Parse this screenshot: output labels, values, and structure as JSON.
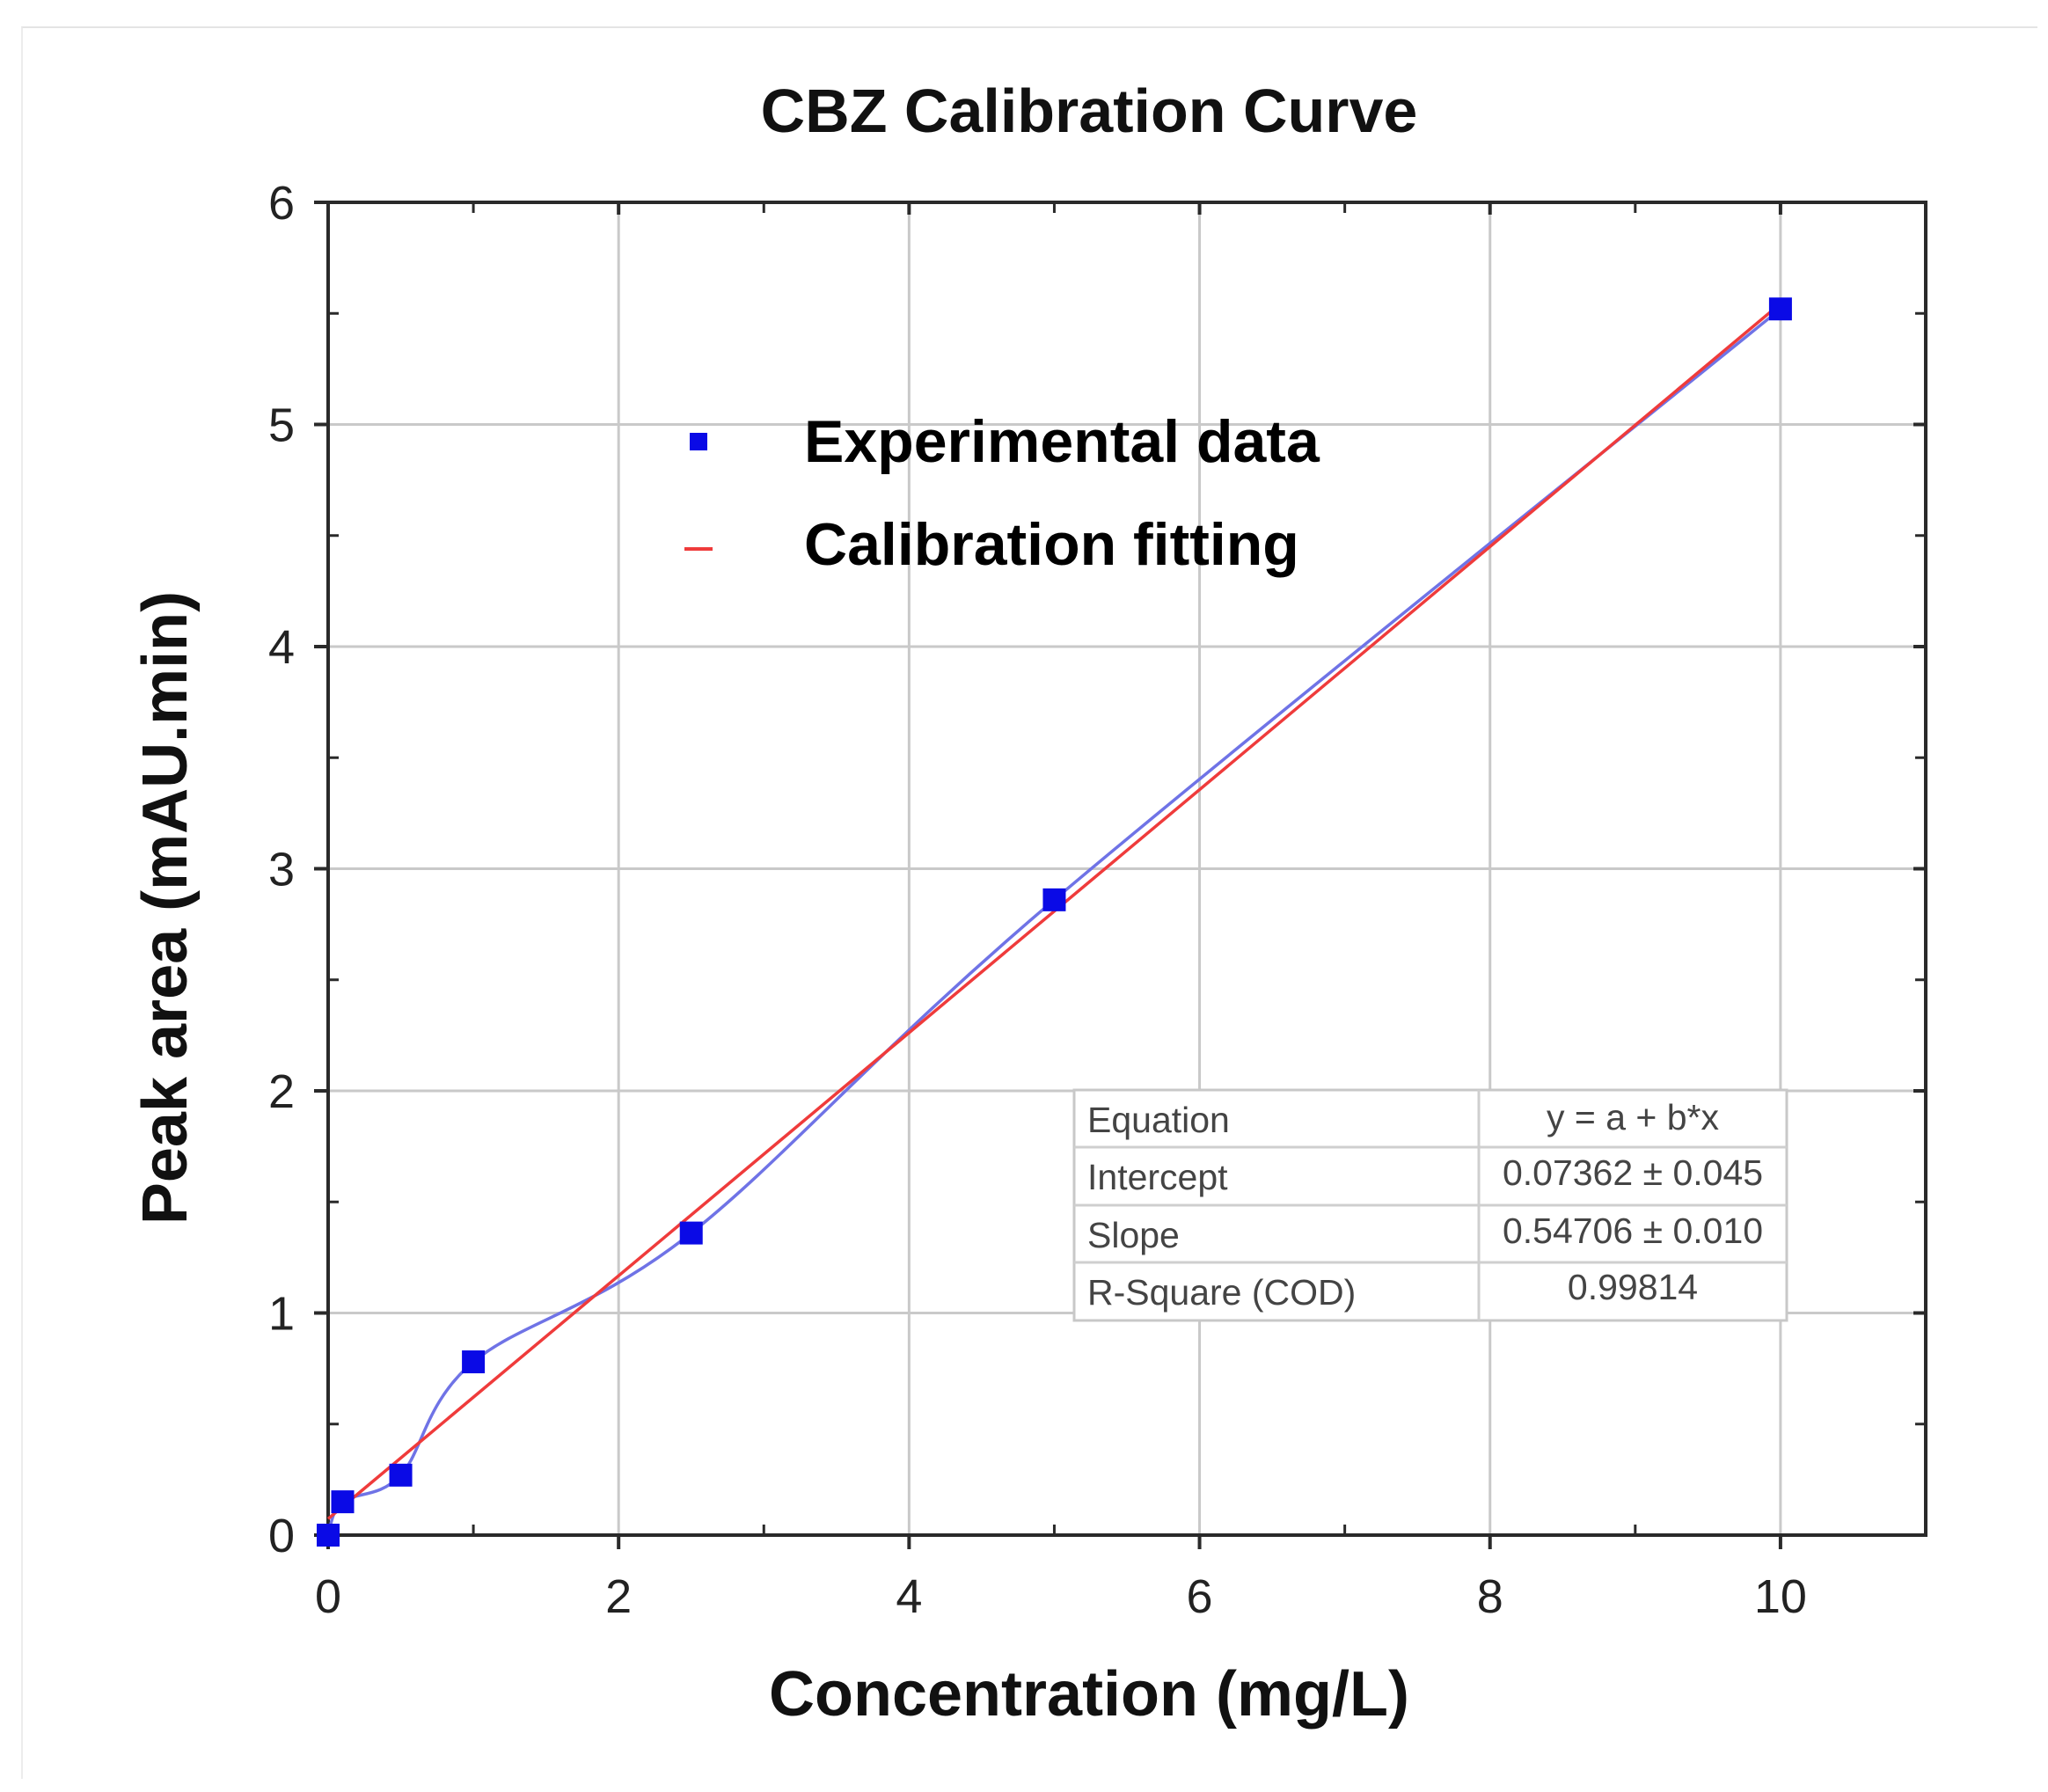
{
  "chart_data": {
    "type": "scatter",
    "title": "CBZ Calibration Curve",
    "xlabel": "Concentration   (mg/L)",
    "ylabel": "Peak area   (mAU.min)",
    "xlim": [
      0,
      11
    ],
    "ylim": [
      0,
      6
    ],
    "x_ticks": [
      "0",
      "2",
      "4",
      "6",
      "8",
      "10"
    ],
    "y_ticks": [
      "0",
      "1",
      "2",
      "3",
      "4",
      "5",
      "6"
    ],
    "grid": true,
    "legend_position": "upper-center",
    "series": [
      {
        "name": "Experimental data",
        "kind": "markers",
        "marker": "square",
        "color": "#0a0ae6",
        "x": [
          0,
          0.1,
          0.5,
          1,
          2.5,
          5,
          10
        ],
        "y": [
          0,
          0.15,
          0.27,
          0.78,
          1.36,
          2.86,
          5.52
        ]
      },
      {
        "name": "Calibration fitting",
        "kind": "line",
        "color": "#ef3b3b",
        "intercept": 0.07362,
        "slope": 0.54706,
        "x": [
          0,
          10
        ]
      },
      {
        "name": "Spline through data",
        "kind": "smooth-line",
        "color": "#6f73e6",
        "in_legend": false
      }
    ],
    "legend": [
      {
        "label": "Experimental data",
        "symbol": "square",
        "color": "#0a0ae6"
      },
      {
        "label": "Calibration fitting",
        "symbol": "dash",
        "color": "#ef3b3b"
      }
    ],
    "stats_table": [
      {
        "label": "Equation",
        "value": "y = a + b*x"
      },
      {
        "label": "Intercept",
        "value": "0.07362 ± 0.045"
      },
      {
        "label": "Slope",
        "value": "0.54706 ± 0.010"
      },
      {
        "label": "R-Square (COD)",
        "value": "0.99814"
      }
    ]
  }
}
